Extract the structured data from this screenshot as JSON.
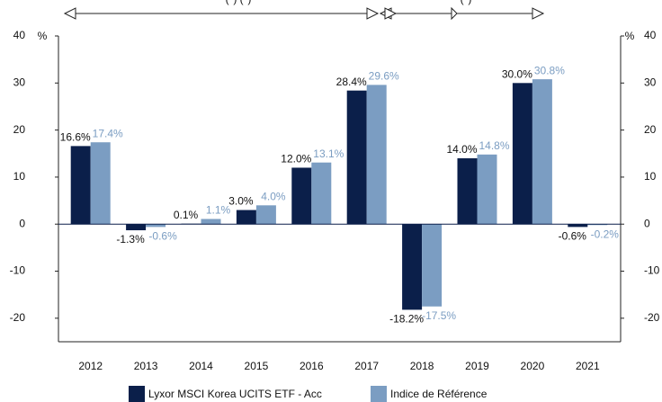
{
  "chart_data": {
    "type": "bar",
    "annotations": [
      "(*) (*)",
      "(*)"
    ],
    "y_unit": "%",
    "categories": [
      "2012",
      "2013",
      "2014",
      "2015",
      "2016",
      "2017",
      "2018",
      "2019",
      "2020",
      "2021"
    ],
    "series": [
      {
        "name": "Lyxor MSCI Korea UCITS ETF - Acc",
        "color": "#0b1f4a",
        "values": [
          16.6,
          -1.3,
          0.1,
          3.0,
          12.0,
          28.4,
          -18.2,
          14.0,
          30.0,
          -0.6
        ],
        "value_labels": [
          "16.6%",
          "-1.3%",
          "0.1%",
          "3.0%",
          "12.0%",
          "28.4%",
          "-18.2%",
          "14.0%",
          "30.0%",
          "-0.6%"
        ]
      },
      {
        "name": "Indice de Référence",
        "color": "#7b9dc2",
        "values": [
          17.4,
          -0.6,
          1.1,
          4.0,
          13.1,
          29.6,
          -17.5,
          14.8,
          30.8,
          -0.2
        ],
        "value_labels": [
          "17.4%",
          "-0.6%",
          "1.1%",
          "4.0%",
          "13.1%",
          "29.6%",
          "-17.5%",
          "14.8%",
          "30.8%",
          "-0.2%"
        ]
      }
    ],
    "ylim": [
      -25,
      40
    ],
    "yticks": [
      -20,
      -10,
      0,
      10,
      20,
      30,
      40
    ]
  }
}
